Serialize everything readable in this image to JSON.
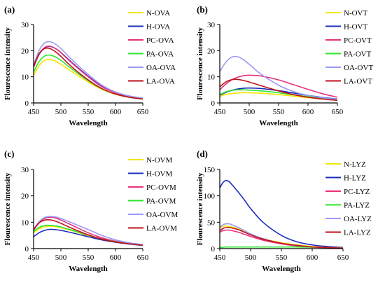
{
  "series_colors": [
    "#f3e600",
    "#1a2dbd",
    "#e8307a",
    "#2ee52e",
    "#9b9bf5",
    "#c0121b"
  ],
  "chart_data": [
    {
      "type": "line",
      "panel_label": "(a)",
      "xlabel": "Wavelength",
      "ylabel": "Flourescence intensity",
      "xlim": [
        450,
        650
      ],
      "ylim": [
        0,
        30
      ],
      "xticks": [
        450,
        500,
        550,
        600,
        650
      ],
      "yticks": [
        0,
        10,
        20,
        30
      ],
      "x": [
        450,
        460,
        470,
        480,
        490,
        500,
        520,
        550,
        575,
        600,
        625,
        650
      ],
      "series": [
        {
          "name": "N-OVA",
          "values": [
            10.5,
            14.2,
            16.3,
            16.6,
            16.0,
            14.8,
            12.0,
            8.0,
            5.2,
            3.3,
            2.2,
            1.5
          ]
        },
        {
          "name": "H-OVA",
          "values": [
            13.8,
            18.5,
            21.0,
            21.6,
            20.8,
            19.3,
            15.5,
            10.2,
            6.4,
            4.0,
            2.6,
            1.8
          ]
        },
        {
          "name": "PC-OVA",
          "values": [
            13.6,
            18.6,
            21.2,
            21.7,
            20.8,
            19.2,
            15.3,
            10.0,
            6.2,
            3.9,
            2.5,
            1.7
          ]
        },
        {
          "name": "PA-OVA",
          "values": [
            11.8,
            15.8,
            17.9,
            18.3,
            17.6,
            16.3,
            13.0,
            8.5,
            5.4,
            3.4,
            2.2,
            1.5
          ]
        },
        {
          "name": "OA-OVA",
          "values": [
            14.5,
            20.0,
            22.9,
            23.4,
            22.5,
            20.8,
            16.6,
            10.9,
            6.8,
            4.2,
            2.7,
            1.8
          ]
        },
        {
          "name": "LA-OVA",
          "values": [
            14.0,
            18.8,
            20.8,
            20.8,
            19.6,
            17.8,
            13.8,
            8.8,
            5.5,
            3.4,
            2.2,
            1.5
          ]
        }
      ],
      "legend_position": "right"
    },
    {
      "type": "line",
      "panel_label": "(b)",
      "xlabel": "Wavelength",
      "ylabel": "Flourescence intensity",
      "xlim": [
        450,
        650
      ],
      "ylim": [
        0,
        30
      ],
      "xticks": [
        450,
        500,
        550,
        600,
        650
      ],
      "yticks": [
        0,
        10,
        20,
        30
      ],
      "x": [
        450,
        460,
        470,
        480,
        490,
        500,
        520,
        550,
        575,
        600,
        625,
        650
      ],
      "series": [
        {
          "name": "N-OVT",
          "values": [
            2.5,
            3.2,
            3.6,
            3.8,
            3.9,
            3.9,
            3.7,
            3.2,
            2.6,
            2.0,
            1.5,
            1.1
          ]
        },
        {
          "name": "H-OVT",
          "values": [
            3.0,
            4.0,
            4.8,
            5.3,
            5.6,
            5.7,
            5.5,
            4.7,
            3.8,
            2.9,
            2.1,
            1.5
          ]
        },
        {
          "name": "PC-OVT",
          "values": [
            5.0,
            7.2,
            8.8,
            9.8,
            10.4,
            10.6,
            10.3,
            8.8,
            7.0,
            5.2,
            3.5,
            2.2
          ]
        },
        {
          "name": "PA-OVT",
          "values": [
            3.2,
            4.2,
            4.8,
            5.0,
            5.0,
            4.9,
            4.6,
            3.9,
            3.1,
            2.4,
            1.7,
            1.2
          ]
        },
        {
          "name": "OA-OVT",
          "values": [
            12.0,
            15.5,
            17.5,
            17.7,
            16.6,
            14.8,
            11.0,
            6.8,
            4.4,
            2.9,
            2.0,
            1.4
          ]
        },
        {
          "name": "LA-OVT",
          "values": [
            6.2,
            8.0,
            8.9,
            9.0,
            8.6,
            8.0,
            6.6,
            4.6,
            3.2,
            2.2,
            1.5,
            1.0
          ]
        }
      ],
      "legend_position": "right"
    },
    {
      "type": "line",
      "panel_label": "(c)",
      "xlabel": "Wavelength",
      "ylabel": "Flourescence intensity",
      "xlim": [
        450,
        650
      ],
      "ylim": [
        0,
        30
      ],
      "xticks": [
        450,
        500,
        550,
        600,
        650
      ],
      "yticks": [
        0,
        10,
        20,
        30
      ],
      "x": [
        450,
        460,
        470,
        480,
        490,
        500,
        520,
        550,
        575,
        600,
        625,
        650
      ],
      "series": [
        {
          "name": "N-OVM",
          "values": [
            6.0,
            7.5,
            8.3,
            8.5,
            8.3,
            7.9,
            6.8,
            4.9,
            3.5,
            2.5,
            1.8,
            1.3
          ]
        },
        {
          "name": "H-OVM",
          "values": [
            4.5,
            6.0,
            6.9,
            7.3,
            7.2,
            6.9,
            6.0,
            4.5,
            3.3,
            2.4,
            1.7,
            1.2
          ]
        },
        {
          "name": "PC-OVM",
          "values": [
            7.0,
            9.8,
            11.4,
            11.9,
            11.6,
            10.8,
            8.9,
            6.0,
            4.1,
            2.8,
            2.0,
            1.4
          ]
        },
        {
          "name": "PA-OVM",
          "values": [
            6.5,
            8.0,
            8.7,
            8.8,
            8.6,
            8.2,
            7.0,
            5.1,
            3.6,
            2.6,
            1.8,
            1.3
          ]
        },
        {
          "name": "OA-OVM",
          "values": [
            7.4,
            10.2,
            11.8,
            12.2,
            12.0,
            11.4,
            9.8,
            7.2,
            5.0,
            3.3,
            2.2,
            1.5
          ]
        },
        {
          "name": "LA-OVM",
          "values": [
            7.2,
            9.7,
            10.8,
            10.9,
            10.4,
            9.6,
            7.7,
            5.2,
            3.6,
            2.5,
            1.8,
            1.3
          ]
        }
      ],
      "legend_position": "right"
    },
    {
      "type": "line",
      "panel_label": "(d)",
      "xlabel": "Wavelength",
      "ylabel": "Flourescence intensity",
      "xlim": [
        450,
        650
      ],
      "ylim": [
        0,
        150
      ],
      "xticks": [
        450,
        500,
        550,
        600,
        650
      ],
      "yticks": [
        0,
        50,
        100,
        150
      ],
      "x": [
        450,
        455,
        460,
        465,
        470,
        480,
        490,
        500,
        520,
        550,
        575,
        600,
        625,
        650
      ],
      "series": [
        {
          "name": "N-LYZ",
          "values": [
            40,
            42,
            43,
            42,
            41,
            37,
            32,
            27,
            19,
            11,
            7,
            4,
            3,
            2
          ]
        },
        {
          "name": "H-LYZ",
          "values": [
            115,
            125,
            129,
            127,
            121,
            107,
            92,
            76,
            50,
            25,
            13,
            7,
            4,
            2
          ]
        },
        {
          "name": "PC-LYZ",
          "values": [
            31,
            34,
            35,
            35,
            34,
            31,
            27,
            23,
            16,
            9,
            5,
            3,
            2,
            1
          ]
        },
        {
          "name": "PA-LYZ",
          "values": [
            2,
            2.5,
            3,
            3,
            3,
            3,
            3,
            3,
            3,
            3,
            3,
            2.5,
            2,
            1.5
          ]
        },
        {
          "name": "OA-LYZ",
          "values": [
            40,
            45,
            47,
            47,
            45,
            40,
            34,
            28,
            19,
            10,
            6,
            3,
            2,
            1
          ]
        },
        {
          "name": "LA-LYZ",
          "values": [
            34,
            38,
            40,
            40,
            39,
            36,
            31,
            26,
            18,
            10,
            6,
            3,
            2,
            1
          ]
        }
      ],
      "legend_position": "right"
    }
  ]
}
